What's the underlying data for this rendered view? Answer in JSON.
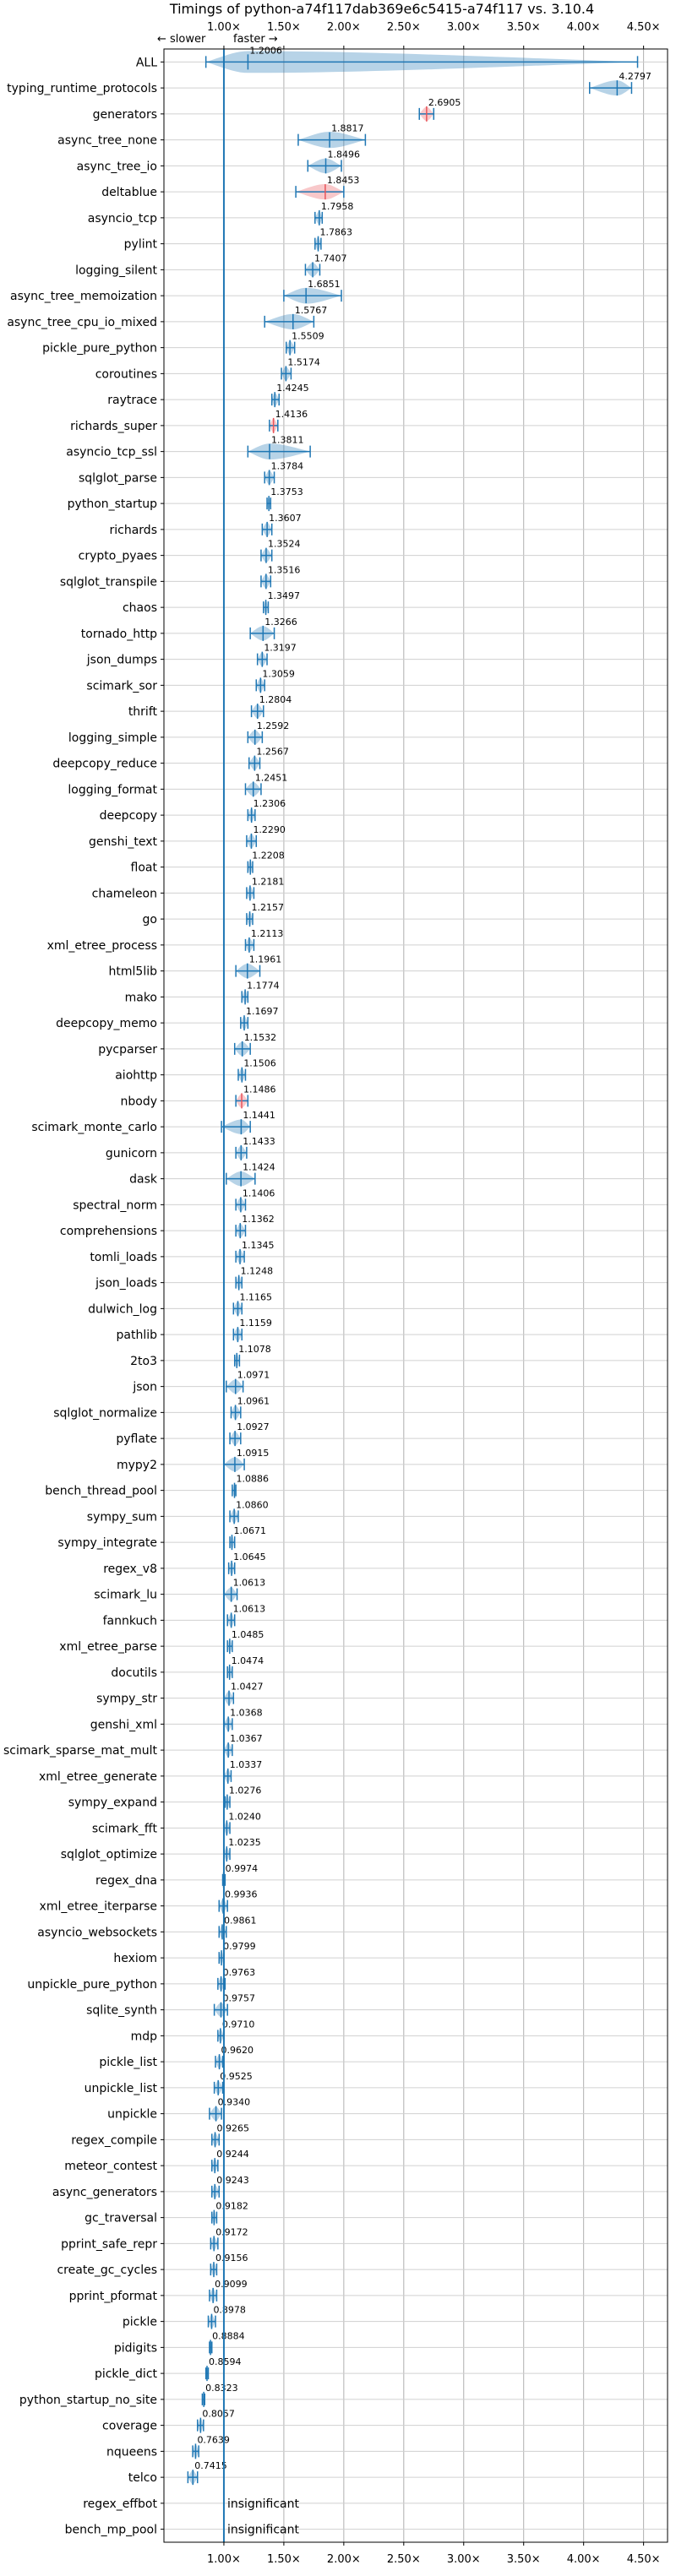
{
  "chart_data": {
    "type": "violin",
    "title": "Timings of python-a74f117dab369e6c5415-a74f117 vs. 3.10.4",
    "xlabel": "",
    "ylabel": "",
    "xlim": [
      0.5,
      4.7
    ],
    "xticks": [
      1.0,
      1.5,
      2.0,
      2.5,
      3.0,
      3.5,
      4.0,
      4.5
    ],
    "xtick_labels": [
      "1.00×",
      "1.50×",
      "2.00×",
      "2.50×",
      "3.00×",
      "3.50×",
      "4.00×",
      "4.50×"
    ],
    "reference_line": 1.0,
    "direction_note": {
      "slower": "← slower",
      "faster": "faster →"
    },
    "grid": true,
    "significant_color": "#1f77b4",
    "regression_color": "#e8545a",
    "insignificant_text": "insignificant",
    "categories": [
      "ALL",
      "typing_runtime_protocols",
      "generators",
      "async_tree_none",
      "async_tree_io",
      "deltablue",
      "asyncio_tcp",
      "pylint",
      "logging_silent",
      "async_tree_memoization",
      "async_tree_cpu_io_mixed",
      "pickle_pure_python",
      "coroutines",
      "raytrace",
      "richards_super",
      "asyncio_tcp_ssl",
      "sqlglot_parse",
      "python_startup",
      "richards",
      "crypto_pyaes",
      "sqlglot_transpile",
      "chaos",
      "tornado_http",
      "json_dumps",
      "scimark_sor",
      "thrift",
      "logging_simple",
      "deepcopy_reduce",
      "logging_format",
      "deepcopy",
      "genshi_text",
      "float",
      "chameleon",
      "go",
      "xml_etree_process",
      "html5lib",
      "mako",
      "deepcopy_memo",
      "pycparser",
      "aiohttp",
      "nbody",
      "scimark_monte_carlo",
      "gunicorn",
      "dask",
      "spectral_norm",
      "comprehensions",
      "tomli_loads",
      "json_loads",
      "dulwich_log",
      "pathlib",
      "2to3",
      "json",
      "sqlglot_normalize",
      "pyflate",
      "mypy2",
      "bench_thread_pool",
      "sympy_sum",
      "sympy_integrate",
      "regex_v8",
      "scimark_lu",
      "fannkuch",
      "xml_etree_parse",
      "docutils",
      "sympy_str",
      "genshi_xml",
      "scimark_sparse_mat_mult",
      "xml_etree_generate",
      "sympy_expand",
      "scimark_fft",
      "sqlglot_optimize",
      "regex_dna",
      "xml_etree_iterparse",
      "asyncio_websockets",
      "hexiom",
      "unpickle_pure_python",
      "sqlite_synth",
      "mdp",
      "pickle_list",
      "unpickle_list",
      "unpickle",
      "regex_compile",
      "meteor_contest",
      "async_generators",
      "gc_traversal",
      "pprint_safe_repr",
      "create_gc_cycles",
      "pprint_pformat",
      "pickle",
      "pidigits",
      "pickle_dict",
      "python_startup_no_site",
      "coverage",
      "nqueens",
      "telco",
      "regex_effbot",
      "bench_mp_pool"
    ],
    "values": [
      1.2006,
      4.2797,
      2.6905,
      1.8817,
      1.8496,
      1.8453,
      1.7958,
      1.7863,
      1.7407,
      1.6851,
      1.5767,
      1.5509,
      1.5174,
      1.4245,
      1.4136,
      1.3811,
      1.3784,
      1.3753,
      1.3607,
      1.3524,
      1.3516,
      1.3497,
      1.3266,
      1.3197,
      1.3059,
      1.2804,
      1.2592,
      1.2567,
      1.2451,
      1.2306,
      1.229,
      1.2208,
      1.2181,
      1.2157,
      1.2113,
      1.1961,
      1.1774,
      1.1697,
      1.1532,
      1.1506,
      1.1486,
      1.1441,
      1.1433,
      1.1424,
      1.1406,
      1.1362,
      1.1345,
      1.1248,
      1.1165,
      1.1159,
      1.1078,
      1.0971,
      1.0961,
      1.0927,
      1.0915,
      1.0886,
      1.086,
      1.0671,
      1.0645,
      1.0613,
      1.0613,
      1.0485,
      1.0474,
      1.0427,
      1.0368,
      1.0367,
      1.0337,
      1.0276,
      1.024,
      1.0235,
      0.9974,
      0.9936,
      0.9861,
      0.9799,
      0.9763,
      0.9757,
      0.971,
      0.962,
      0.9525,
      0.934,
      0.9265,
      0.9244,
      0.9243,
      0.9182,
      0.9172,
      0.9156,
      0.9099,
      0.8978,
      0.8884,
      0.8594,
      0.8323,
      0.8057,
      0.7639,
      0.7415,
      null,
      null
    ],
    "spread": [
      [
        0.85,
        4.45
      ],
      [
        4.05,
        4.4
      ],
      [
        2.63,
        2.75
      ],
      [
        1.62,
        2.18
      ],
      [
        1.7,
        1.98
      ],
      [
        1.6,
        2.0
      ],
      [
        1.76,
        1.82
      ],
      [
        1.76,
        1.81
      ],
      [
        1.68,
        1.8
      ],
      [
        1.5,
        1.98
      ],
      [
        1.34,
        1.75
      ],
      [
        1.52,
        1.59
      ],
      [
        1.48,
        1.56
      ],
      [
        1.4,
        1.46
      ],
      [
        1.38,
        1.45
      ],
      [
        1.2,
        1.72
      ],
      [
        1.34,
        1.42
      ],
      [
        1.36,
        1.39
      ],
      [
        1.32,
        1.4
      ],
      [
        1.31,
        1.4
      ],
      [
        1.31,
        1.39
      ],
      [
        1.33,
        1.37
      ],
      [
        1.22,
        1.42
      ],
      [
        1.28,
        1.36
      ],
      [
        1.27,
        1.34
      ],
      [
        1.23,
        1.33
      ],
      [
        1.2,
        1.32
      ],
      [
        1.21,
        1.3
      ],
      [
        1.18,
        1.31
      ],
      [
        1.2,
        1.26
      ],
      [
        1.19,
        1.27
      ],
      [
        1.2,
        1.24
      ],
      [
        1.19,
        1.25
      ],
      [
        1.19,
        1.24
      ],
      [
        1.18,
        1.25
      ],
      [
        1.1,
        1.3
      ],
      [
        1.15,
        1.2
      ],
      [
        1.14,
        1.2
      ],
      [
        1.09,
        1.22
      ],
      [
        1.12,
        1.18
      ],
      [
        1.1,
        1.2
      ],
      [
        0.98,
        1.22
      ],
      [
        1.1,
        1.19
      ],
      [
        1.02,
        1.26
      ],
      [
        1.1,
        1.18
      ],
      [
        1.1,
        1.18
      ],
      [
        1.1,
        1.17
      ],
      [
        1.1,
        1.15
      ],
      [
        1.08,
        1.15
      ],
      [
        1.08,
        1.15
      ],
      [
        1.09,
        1.13
      ],
      [
        1.02,
        1.16
      ],
      [
        1.06,
        1.14
      ],
      [
        1.05,
        1.14
      ],
      [
        1.0,
        1.17
      ],
      [
        1.07,
        1.1
      ],
      [
        1.05,
        1.12
      ],
      [
        1.05,
        1.09
      ],
      [
        1.04,
        1.09
      ],
      [
        1.0,
        1.11
      ],
      [
        1.03,
        1.09
      ],
      [
        1.03,
        1.07
      ],
      [
        1.03,
        1.07
      ],
      [
        1.0,
        1.08
      ],
      [
        1.0,
        1.07
      ],
      [
        1.0,
        1.07
      ],
      [
        1.0,
        1.06
      ],
      [
        1.01,
        1.05
      ],
      [
        1.0,
        1.05
      ],
      [
        1.0,
        1.05
      ],
      [
        0.99,
        1.01
      ],
      [
        0.96,
        1.03
      ],
      [
        0.96,
        1.02
      ],
      [
        0.96,
        1.0
      ],
      [
        0.95,
        1.01
      ],
      [
        0.92,
        1.03
      ],
      [
        0.95,
        1.0
      ],
      [
        0.93,
        0.99
      ],
      [
        0.92,
        0.99
      ],
      [
        0.88,
        0.98
      ],
      [
        0.9,
        0.96
      ],
      [
        0.9,
        0.95
      ],
      [
        0.9,
        0.96
      ],
      [
        0.9,
        0.94
      ],
      [
        0.89,
        0.95
      ],
      [
        0.89,
        0.94
      ],
      [
        0.88,
        0.94
      ],
      [
        0.87,
        0.93
      ],
      [
        0.88,
        0.9
      ],
      [
        0.85,
        0.87
      ],
      [
        0.82,
        0.84
      ],
      [
        0.78,
        0.83
      ],
      [
        0.74,
        0.79
      ],
      [
        0.7,
        0.78
      ],
      [
        null,
        null
      ],
      [
        null,
        null
      ]
    ],
    "regressions": [
      "generators",
      "deltablue",
      "richards_super",
      "nbody"
    ]
  }
}
